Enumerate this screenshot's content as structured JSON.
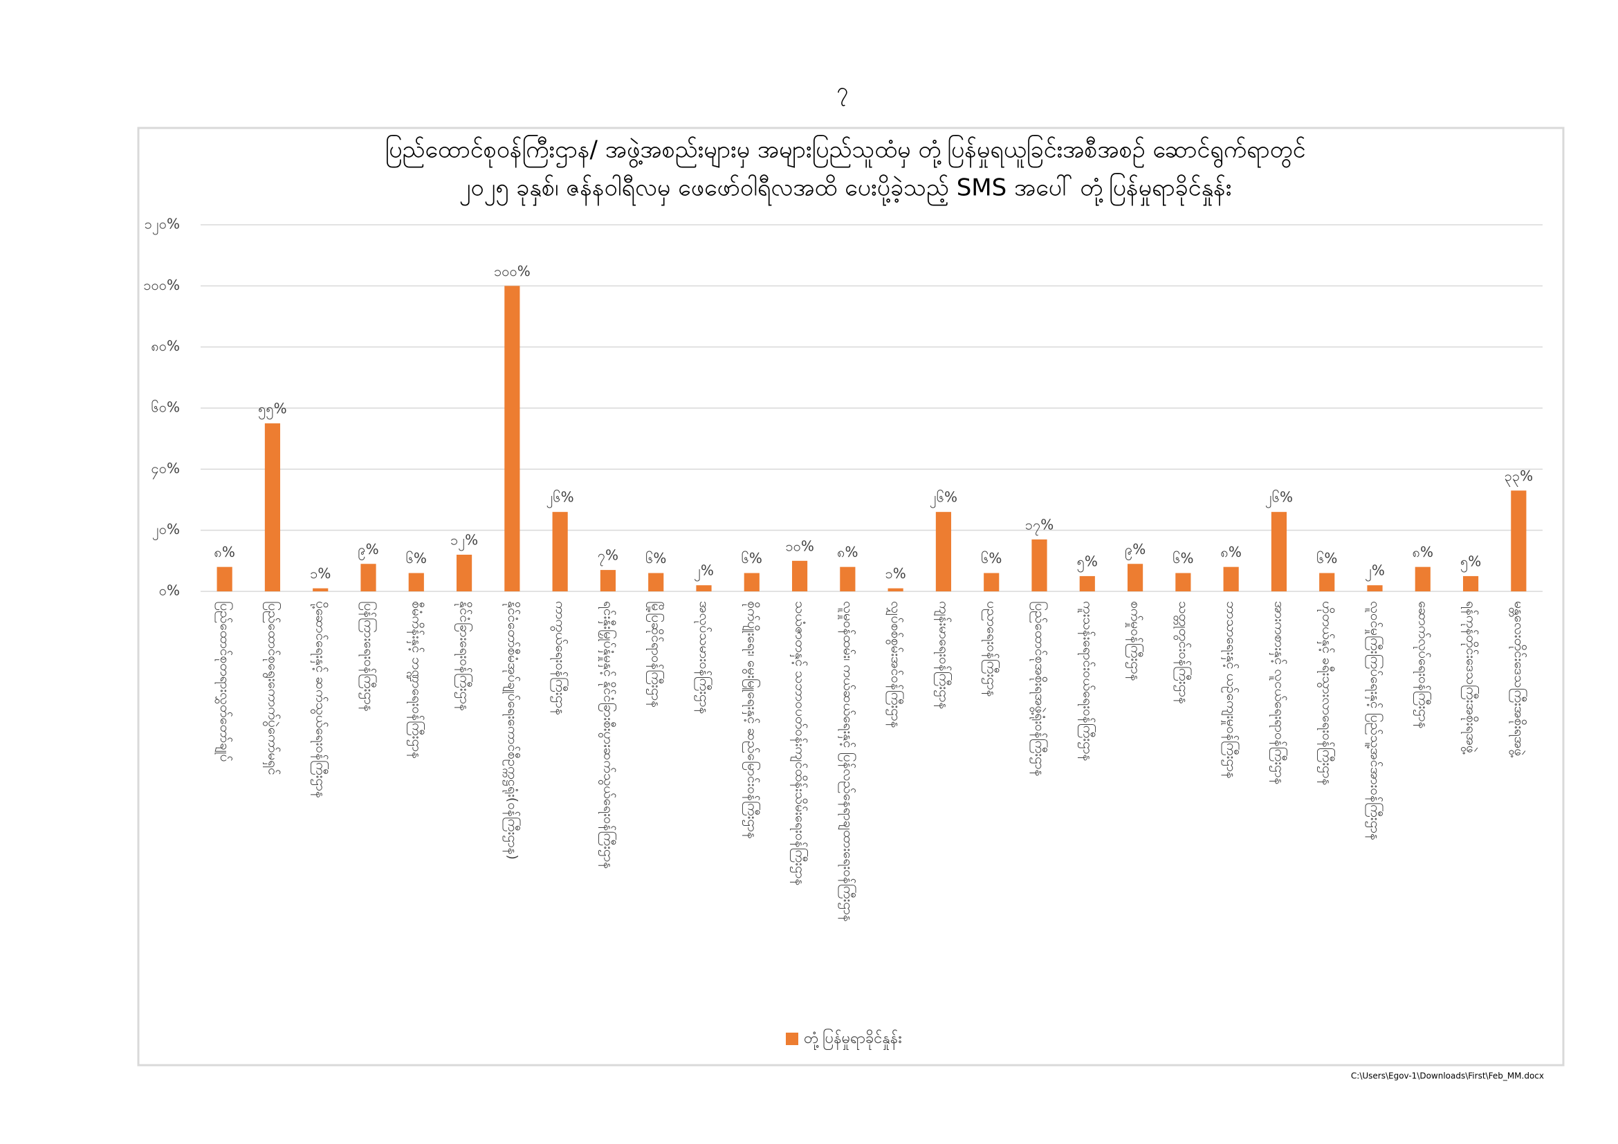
{
  "page_number": "၇",
  "footer": "C:\\Users\\Egov-1\\Downloads\\First\\Feb_MM.docx",
  "chart_data": {
    "type": "bar",
    "title": [
      "ပြည်ထောင်စုဝန်ကြီးဌာန/ အဖွဲ့အစည်းများမှ အများပြည်သူထံမှ တုံ့ပြန်မှုရယူခြင်းအစီအစဉ် ဆောင်ရွက်ရာတွင်",
      "၂၀၂၅ ခုနှစ်၊ ဇန်နဝါရီလမှ ဖေဖော်ဝါရီလအထိ ပေးပို့ခဲ့သည့် SMS အပေါ် တုံ့ပြန်မှုရာခိုင်နှုန်း"
    ],
    "categories": [
      "ပြည်ထောင်စုတရားလွှတ်တော်ချုပ်",
      "ပြည်ထောင်စုရွေးကောက်ပွဲကော်မရှင်",
      "ပို့ဆောင်ရေးနှင့် ဆက်သွယ်ရေးဝန်ကြီးဌာန",
      "ပြန်ကြားရေးဝန်ကြီးဌာန",
      "စီမံကိန်းနှင့် ဘဏ္ဍာရေးဝန်ကြီးဌာန",
      "နိုင်ငံခြားရေးဝန်ကြီးဌာန",
      "နိုင်ငံတော်စီမံအုပ်ချုပ်ရေးကောင်စီဥက္ကဋ္ဌရုံး(ဝန်ကြီးဌာန)",
      "ကာကွယ်ရေးဝန်ကြီးဌာန",
      "ရင်းနှီးမြှုပ်နှံမှုနှင့် နိုင်ငံခြားစီးပွားဆက်သွယ်ရေးဝန်ကြီးဌာန",
      "မြို့ပြဆိုင်ရာဝန်ကြီးဌာန",
      "အလုပ်သမားဝန်ကြီးဌာန",
      "စိုက်ပျိုးရေး၊ မွေးမြူရေးနှင့် ဆည်မြောင်းဝန်ကြီးဌာန",
      "သယံဇာတနှင့် သဘာဝပတ်ဝန်းကျင်ထိန်းသိမ်းရေးဝန်ကြီးဌာန",
      "လူမှုဝန်ထမ်း၊ ကယ်ဆယ်ရေးနှင့် ပြန်လည်နေရာချထားရေးဝန်ကြီးဌာန",
      "လျှပ်စစ်စွမ်းအင်ဝန်ကြီးဌာန",
      "ကျန်းမာရေးဝန်ကြီးဌာန",
      "ပညာရေးဝန်ကြီးဌာန",
      "ပြည်ထောင်စုအစိုးရအဖွဲ့ရုံးဝန်ကြီးဌာန",
      "ကူးသန်းရောင်းဝယ်ရေးဝန်ကြီးဌာန",
      "စက်မှုဝန်ကြီးဌာန",
      "သတ္တုတွင်းဝန်ကြီးဌာန",
      "ဘာသာရေးနှင့် ယဉ်ကျေးမှုဝန်ကြီးဌာန",
      "အားကစားနှင့် လူငယ်ရေးရာဝန်ကြီးဌာန",
      "ဟိုတယ်နှင့် ခရီးသွားလာရေးဝန်ကြီးဌာန",
      "လူဝင်မှုကြီးကြပ်ရေးနှင့် ပြည်သူ့အင်အားဝန်ကြီးဌာန",
      "ဆောက်လုပ်ရေးဝန်ကြီးဌာန",
      "ရန်ကုန်တိုင်းဒေသကြီးအစိုးရအဖွဲ့",
      "မန္တလေးတိုင်းဒေသကြီးအစိုးရအဖွဲ့"
    ],
    "series": [
      {
        "name": "တုံ့ပြန်မှုရာခိုင်နှုန်း",
        "color": "#ed7d31",
        "values": [
          8,
          55,
          1,
          9,
          6,
          12,
          100,
          26,
          7,
          6,
          2,
          6,
          10,
          8,
          1,
          26,
          6,
          17,
          5,
          9,
          6,
          8,
          26,
          6,
          2,
          8,
          5,
          33
        ],
        "value_labels": [
          "၈%",
          "၅၅%",
          "၁%",
          "၉%",
          "၆%",
          "၁၂%",
          "၁၀၀%",
          "၂၆%",
          "၇%",
          "၆%",
          "၂%",
          "၆%",
          "၁၀%",
          "၈%",
          "၁%",
          "၂၆%",
          "၆%",
          "၁၇%",
          "၅%",
          "၉%",
          "၆%",
          "၈%",
          "၂၆%",
          "၆%",
          "၂%",
          "၈%",
          "၅%",
          "၃၃%"
        ]
      }
    ],
    "ylim": [
      0,
      120
    ],
    "yticks": [
      {
        "value": 0,
        "label": "၀%"
      },
      {
        "value": 20,
        "label": "၂၀%"
      },
      {
        "value": 40,
        "label": "၄၀%"
      },
      {
        "value": 60,
        "label": "၆၀%"
      },
      {
        "value": 80,
        "label": "၈၀%"
      },
      {
        "value": 100,
        "label": "၁၀၀%"
      },
      {
        "value": 120,
        "label": "၁၂၀%"
      }
    ],
    "grid": true,
    "legend": "bottom"
  }
}
